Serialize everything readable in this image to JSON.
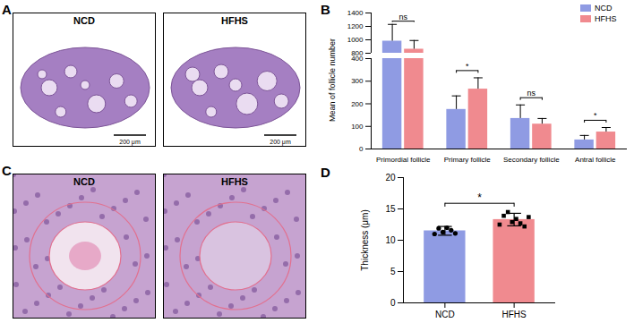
{
  "chart_data": [
    {
      "type": "bar",
      "panel_label": "B",
      "ylabel": "Mean of follicle number",
      "categories": [
        "Primordial follicle",
        "Primary follicle",
        "Secondary follicle",
        "Antral follicle"
      ],
      "series": [
        {
          "name": "NCD",
          "color": "#8f9be3",
          "values": [
            980,
            175,
            135,
            40
          ],
          "errors": [
            250,
            60,
            60,
            20
          ]
        },
        {
          "name": "HFHS",
          "color": "#f08a8f",
          "values": [
            860,
            265,
            110,
            75
          ],
          "errors": [
            130,
            50,
            25,
            20
          ]
        }
      ],
      "ylim": [
        0,
        1400
      ],
      "y_break": [
        400,
        800
      ],
      "yticks": [
        0,
        100,
        200,
        300,
        400,
        800,
        1000,
        1200,
        1400
      ],
      "significance": [
        "ns",
        "*",
        "ns",
        "*"
      ],
      "legend": "top-right"
    },
    {
      "type": "bar",
      "panel_label": "D",
      "ylabel": "Thickness (μm)",
      "categories": [
        "NCD",
        "HFHS"
      ],
      "values": [
        11.5,
        13.3
      ],
      "errors": [
        0.7,
        1.0
      ],
      "colors": [
        "#8f9be3",
        "#f08a8f"
      ],
      "markers": [
        "circle",
        "square"
      ],
      "points": [
        [
          11.0,
          11.9,
          11.3,
          12.0,
          11.6,
          11.1
        ],
        [
          12.5,
          13.9,
          14.5,
          12.9,
          13.4,
          12.7,
          12.2,
          13.7
        ]
      ],
      "ylim": [
        0,
        20
      ],
      "yticks": [
        0,
        5,
        10,
        15,
        20
      ],
      "significance": [
        "*"
      ]
    }
  ],
  "images": [
    {
      "panel_label": "A",
      "labels": [
        "NCD",
        "HFHS"
      ],
      "scale_bar": "200 μm"
    },
    {
      "panel_label": "C",
      "labels": [
        "NCD",
        "HFHS"
      ]
    }
  ]
}
